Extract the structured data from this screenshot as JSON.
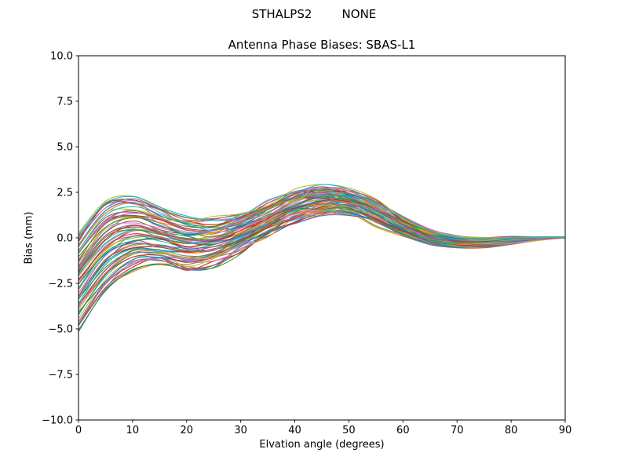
{
  "figure": {
    "suptitle": "STHALPS2        NONE",
    "background": "#ffffff"
  },
  "chart_data": {
    "type": "line",
    "title": "Antenna Phase Biases: SBAS-L1",
    "xlabel": "Elvation angle (degrees)",
    "ylabel": "Bias (mm)",
    "xlim": [
      0,
      90
    ],
    "ylim": [
      -10,
      10
    ],
    "xticks": [
      0,
      10,
      20,
      30,
      40,
      50,
      60,
      70,
      80,
      90
    ],
    "yticks": [
      -10,
      -7.5,
      -5,
      -2.5,
      0,
      2.5,
      5,
      7.5,
      10
    ],
    "ytick_labels": [
      "−10.0",
      "−7.5",
      "−5.0",
      "−2.5",
      "0.0",
      "2.5",
      "5.0",
      "7.5",
      "10.0"
    ],
    "grid": false,
    "legend": "none",
    "x": [
      0,
      5,
      10,
      15,
      20,
      25,
      30,
      35,
      40,
      45,
      50,
      55,
      60,
      65,
      70,
      75,
      80,
      85,
      90
    ],
    "ensemble": {
      "n_lines": 70,
      "envelope_top": [
        0.3,
        2.0,
        2.2,
        1.6,
        1.1,
        1.0,
        1.3,
        1.9,
        2.5,
        2.75,
        2.6,
        2.0,
        1.1,
        0.45,
        0.1,
        0.0,
        0.05,
        0.05,
        0.05
      ],
      "envelope_bottom": [
        -5.0,
        -2.9,
        -1.7,
        -1.4,
        -1.7,
        -1.5,
        -0.7,
        0.2,
        0.9,
        1.3,
        1.25,
        0.75,
        0.15,
        -0.35,
        -0.55,
        -0.5,
        -0.35,
        -0.15,
        0.0
      ]
    },
    "palette": [
      "#1f77b4",
      "#ff7f0e",
      "#2ca02c",
      "#d62728",
      "#9467bd",
      "#8c564b",
      "#e377c2",
      "#7f7f7f",
      "#bcbd22",
      "#17becf"
    ],
    "axis_color": "#000000"
  }
}
